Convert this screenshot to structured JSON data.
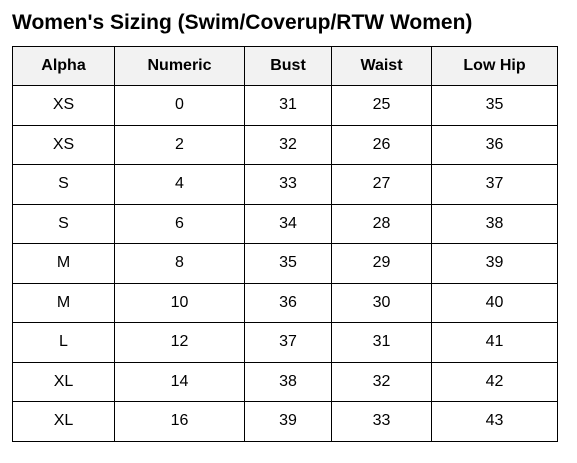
{
  "title": "Women's Sizing (Swim/Coverup/RTW Women)",
  "table": {
    "headers": [
      "Alpha",
      "Numeric",
      "Bust",
      "Waist",
      "Low Hip"
    ],
    "rows": [
      [
        "XS",
        "0",
        "31",
        "25",
        "35"
      ],
      [
        "XS",
        "2",
        "32",
        "26",
        "36"
      ],
      [
        "S",
        "4",
        "33",
        "27",
        "37"
      ],
      [
        "S",
        "6",
        "34",
        "28",
        "38"
      ],
      [
        "M",
        "8",
        "35",
        "29",
        "39"
      ],
      [
        "M",
        "10",
        "36",
        "30",
        "40"
      ],
      [
        "L",
        "12",
        "37",
        "31",
        "41"
      ],
      [
        "XL",
        "14",
        "38",
        "32",
        "42"
      ],
      [
        "XL",
        "16",
        "39",
        "33",
        "43"
      ]
    ]
  },
  "colors": {
    "header_background": "#f2f2f2",
    "border": "#000000",
    "text": "#000000"
  }
}
